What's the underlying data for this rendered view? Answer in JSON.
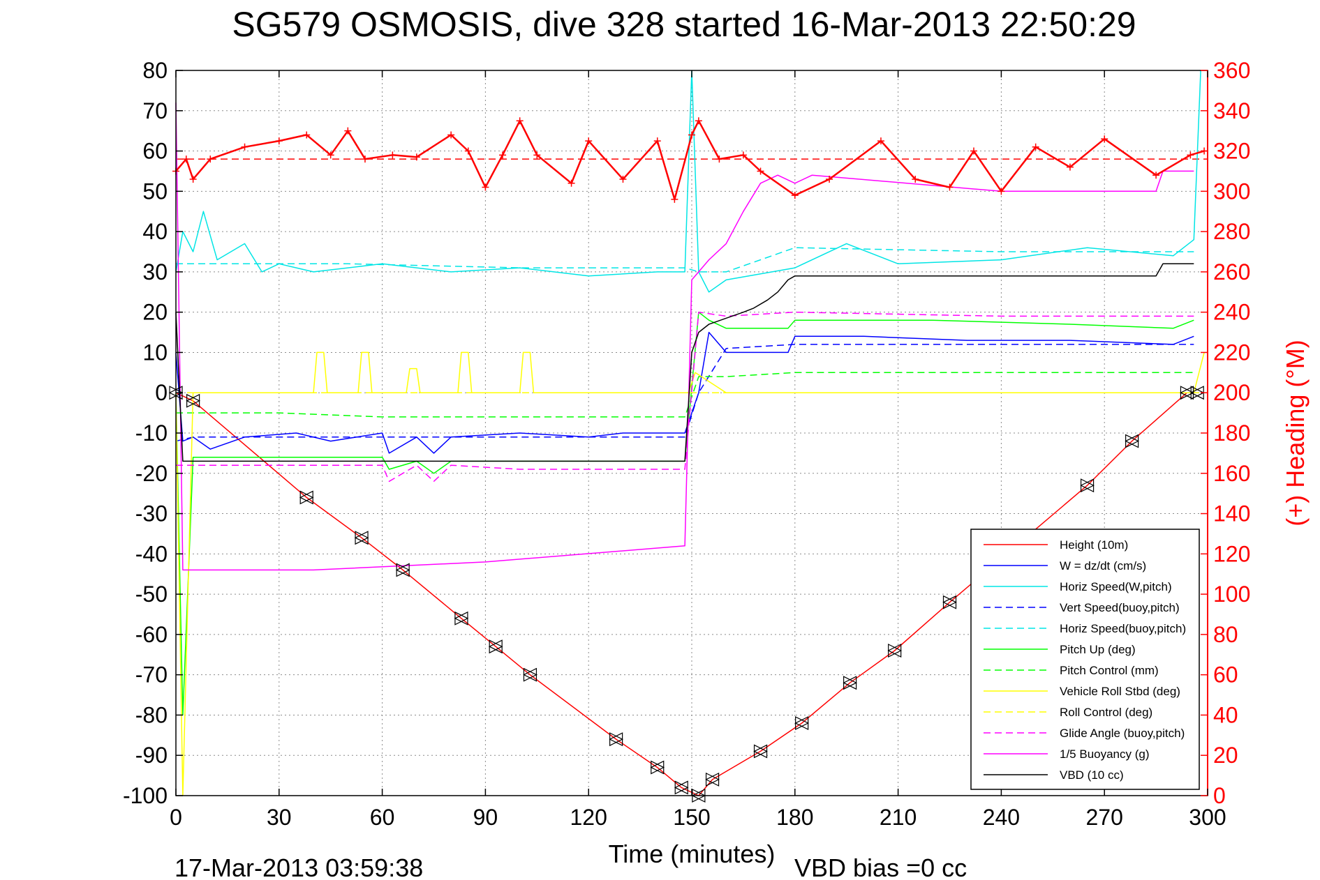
{
  "chart_data": {
    "type": "line",
    "title": "SG579 OSMOSIS, dive 328 started 16-Mar-2013 22:50:29",
    "xlabel": "Time (minutes)",
    "ylabel_right": "(+) Heading (°M)",
    "footer_left": "17-Mar-2013 03:59:38",
    "footer_right": "VBD bias =0 cc",
    "xlim": [
      0,
      300
    ],
    "ylim": [
      -100,
      80
    ],
    "y2lim": [
      0,
      360
    ],
    "x_ticks": [
      0,
      30,
      60,
      90,
      120,
      150,
      180,
      210,
      240,
      270,
      300
    ],
    "y_ticks": [
      80,
      70,
      60,
      50,
      40,
      30,
      20,
      10,
      0,
      -10,
      -20,
      -30,
      -40,
      -50,
      -60,
      -70,
      -80,
      -90,
      -100
    ],
    "y2_ticks": [
      360,
      340,
      320,
      300,
      280,
      260,
      240,
      220,
      200,
      180,
      160,
      140,
      120,
      100,
      80,
      60,
      40,
      20,
      0
    ],
    "grid": true,
    "legend_position": "bottom-right",
    "heading_mean": 316,
    "series": [
      {
        "name": "Height (10m)",
        "color": "#ff0000",
        "dash": "solid",
        "x": [
          0,
          5,
          38,
          54,
          66,
          83,
          93,
          103,
          128,
          140,
          147,
          152,
          156,
          170,
          182,
          196,
          209,
          225,
          265,
          278,
          294,
          297
        ],
        "y": [
          0,
          -2,
          -26,
          -36,
          -44,
          -56,
          -63,
          -70,
          -86,
          -93,
          -98,
          -100,
          -96,
          -89,
          -82,
          -72,
          -64,
          -52,
          -23,
          -12,
          0,
          0
        ]
      },
      {
        "name": "W = dz/dt (cm/s)",
        "color": "#0000ff",
        "dash": "solid",
        "x": [
          0,
          2,
          5,
          10,
          20,
          35,
          45,
          60,
          62,
          70,
          75,
          80,
          100,
          120,
          130,
          148,
          152,
          155,
          160,
          178,
          180,
          200,
          230,
          260,
          290,
          296
        ],
        "y": [
          10,
          -12,
          -11,
          -14,
          -11,
          -10,
          -12,
          -10,
          -15,
          -11,
          -15,
          -11,
          -10,
          -11,
          -10,
          -10,
          0,
          15,
          10,
          10,
          14,
          14,
          13,
          13,
          12,
          14
        ]
      },
      {
        "name": "Horiz Speed(W,pitch)",
        "color": "#00e5e5",
        "dash": "solid",
        "x": [
          0,
          2,
          5,
          8,
          12,
          20,
          25,
          30,
          40,
          60,
          80,
          100,
          120,
          140,
          148,
          150,
          152,
          155,
          160,
          180,
          195,
          210,
          240,
          265,
          290,
          296,
          298
        ],
        "y": [
          30,
          40,
          35,
          45,
          33,
          37,
          30,
          32,
          30,
          32,
          30,
          31,
          29,
          30,
          30,
          80,
          30,
          25,
          28,
          31,
          37,
          32,
          33,
          36,
          34,
          38,
          80
        ]
      },
      {
        "name": "Vert Speed(buoy,pitch)",
        "color": "#0000ff",
        "dash": "dashed",
        "x": [
          0,
          5,
          50,
          100,
          148,
          152,
          160,
          180,
          240,
          296
        ],
        "y": [
          -12,
          -11,
          -11,
          -11,
          -11,
          0,
          11,
          12,
          12,
          12
        ]
      },
      {
        "name": "Horiz Speed(buoy,pitch)",
        "color": "#00e5e5",
        "dash": "dashed",
        "x": [
          0,
          5,
          50,
          100,
          148,
          152,
          160,
          180,
          240,
          296
        ],
        "y": [
          32,
          32,
          32,
          31,
          31,
          30,
          30,
          36,
          35,
          35
        ]
      },
      {
        "name": "Pitch Up (deg)",
        "color": "#00ff00",
        "dash": "solid",
        "x": [
          0,
          2,
          5,
          20,
          40,
          60,
          62,
          70,
          75,
          80,
          100,
          148,
          152,
          155,
          160,
          178,
          180,
          220,
          260,
          290,
          296
        ],
        "y": [
          0,
          -80,
          -16,
          -16,
          -16,
          -16,
          -19,
          -17,
          -20,
          -17,
          -17,
          -17,
          20,
          18,
          16,
          16,
          18,
          18,
          17,
          16,
          18
        ]
      },
      {
        "name": "Pitch Control (mm)",
        "color": "#00ff00",
        "dash": "dashed",
        "x": [
          0,
          5,
          30,
          60,
          100,
          148,
          152,
          160,
          180,
          240,
          296
        ],
        "y": [
          -5,
          -5,
          -5,
          -6,
          -6,
          -6,
          4,
          4,
          5,
          5,
          5
        ]
      },
      {
        "name": "Vehicle Roll Stbd (deg)",
        "color": "#ffff00",
        "dash": "solid",
        "x": [
          0,
          2,
          5,
          40,
          41,
          43,
          44,
          53,
          54,
          56,
          57,
          67,
          68,
          70,
          71,
          82,
          83,
          85,
          86,
          100,
          101,
          103,
          104,
          149,
          151,
          160,
          200,
          250,
          296,
          299
        ],
        "y": [
          0,
          -100,
          0,
          0,
          10,
          10,
          0,
          0,
          10,
          10,
          0,
          0,
          6,
          6,
          0,
          0,
          10,
          10,
          0,
          0,
          10,
          10,
          0,
          0,
          5,
          0,
          0,
          0,
          0,
          10
        ]
      },
      {
        "name": "Roll Control (deg)",
        "color": "#ffff00",
        "dash": "dashed",
        "x": [
          0,
          150,
          152,
          300
        ],
        "y": [
          0,
          0,
          0,
          0
        ]
      },
      {
        "name": "Glide Angle (buoy,pitch)",
        "color": "#ff00ff",
        "dash": "dashed",
        "x": [
          0,
          5,
          40,
          60,
          62,
          70,
          75,
          80,
          100,
          148,
          152,
          160,
          180,
          240,
          296
        ],
        "y": [
          -18,
          -18,
          -18,
          -18,
          -22,
          -18,
          -22,
          -18,
          -19,
          -19,
          20,
          19,
          20,
          19,
          19
        ]
      },
      {
        "name": "1/5 Buoyancy (g)",
        "color": "#ff00ff",
        "dash": "solid",
        "x": [
          0,
          2,
          40,
          90,
          148,
          150,
          155,
          160,
          165,
          170,
          175,
          180,
          185,
          240,
          285,
          287,
          296
        ],
        "y": [
          72,
          -44,
          -44,
          -42,
          -38,
          28,
          33,
          37,
          45,
          52,
          54,
          52,
          54,
          50,
          50,
          55,
          55
        ]
      },
      {
        "name": "VBD (10 cc)",
        "color": "#000000",
        "dash": "solid",
        "x": [
          0,
          2,
          148,
          150,
          152,
          155,
          165,
          168,
          172,
          175,
          178,
          180,
          285,
          287,
          296
        ],
        "y": [
          20,
          -17,
          -17,
          10,
          15,
          17,
          20,
          21,
          23,
          25,
          28,
          29,
          29,
          32,
          32
        ]
      },
      {
        "name": "Heading",
        "color": "#ff0000",
        "axis": "right",
        "dash": "solid",
        "x": [
          0,
          3,
          5,
          10,
          20,
          30,
          38,
          45,
          50,
          55,
          63,
          70,
          80,
          85,
          90,
          95,
          100,
          105,
          115,
          120,
          130,
          140,
          145,
          150,
          152,
          158,
          165,
          170,
          180,
          190,
          205,
          215,
          225,
          232,
          240,
          250,
          260,
          270,
          285,
          295,
          299
        ],
        "y": [
          310,
          316,
          306,
          316,
          322,
          325,
          328,
          318,
          330,
          316,
          318,
          317,
          328,
          320,
          302,
          318,
          335,
          318,
          304,
          325,
          306,
          325,
          296,
          328,
          335,
          316,
          318,
          310,
          298,
          306,
          325,
          306,
          302,
          320,
          300,
          322,
          312,
          326,
          308,
          318,
          320
        ]
      }
    ]
  }
}
